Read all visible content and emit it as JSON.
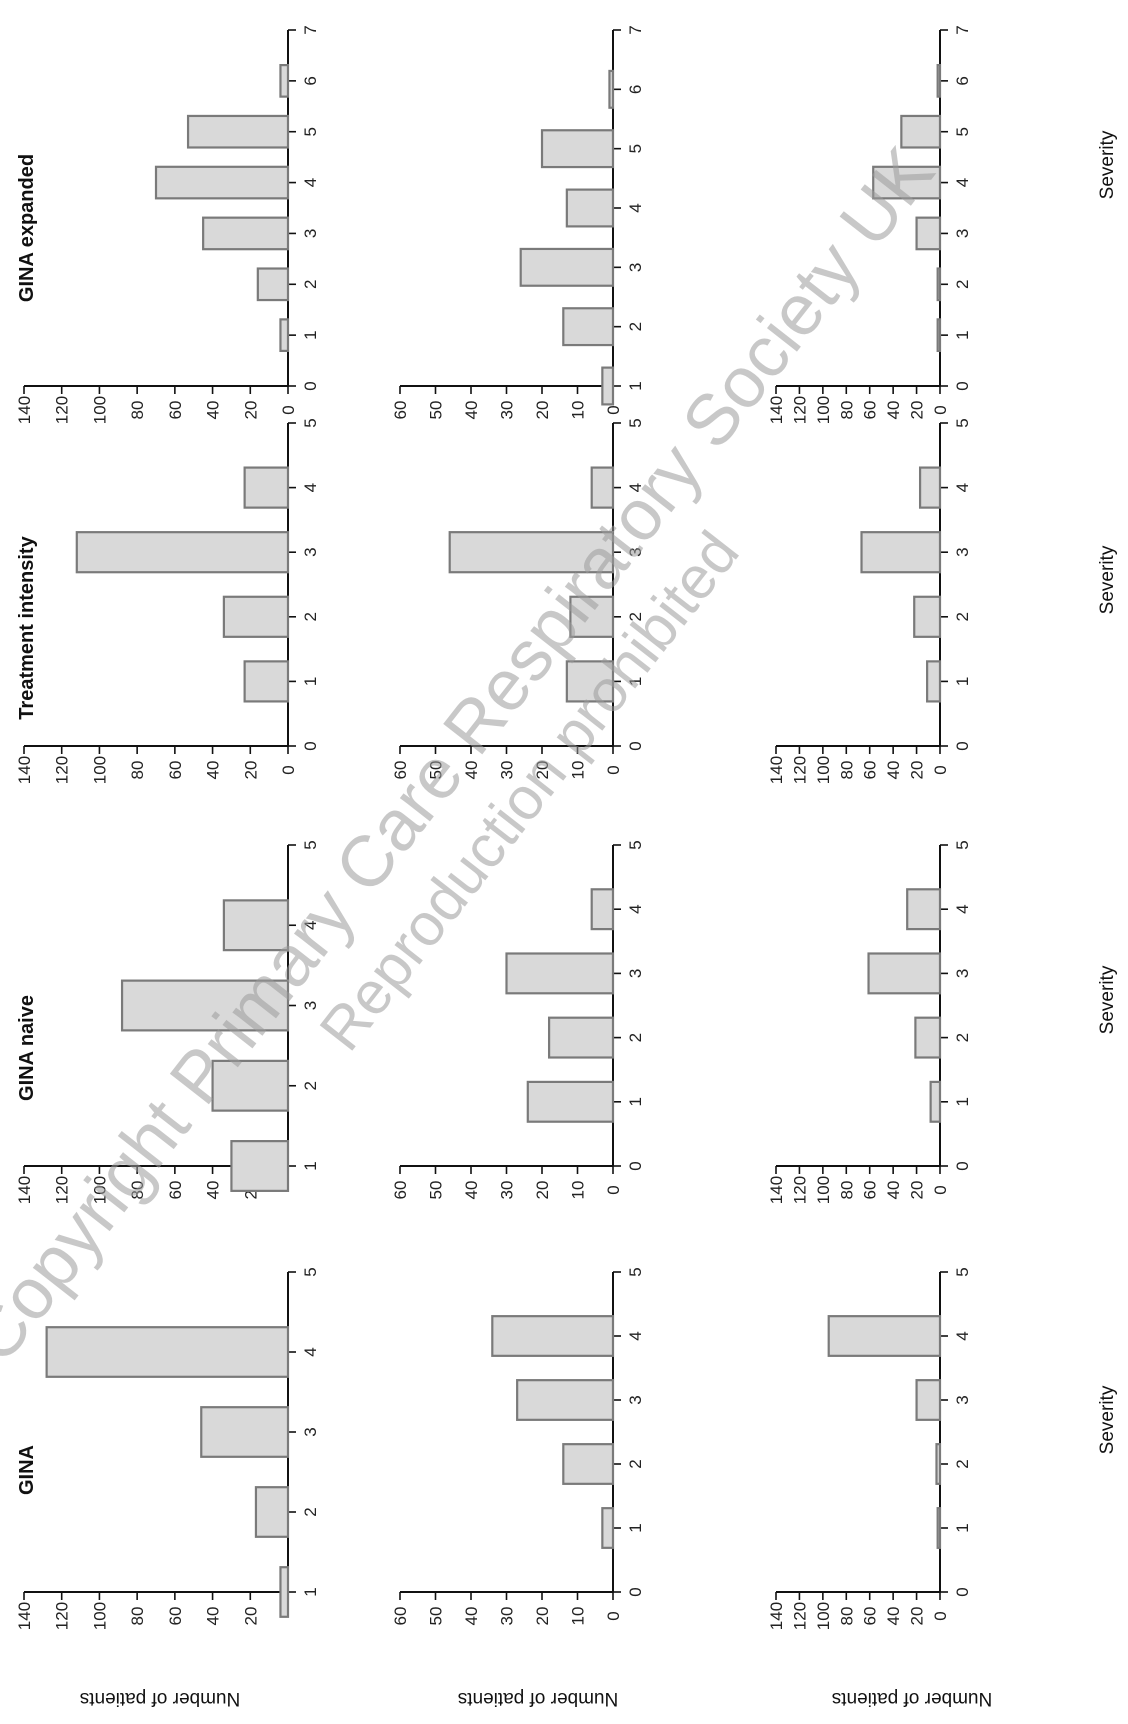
{
  "figure": {
    "watermark_line1": "Copyright Primary Care Respiratory Society UK",
    "watermark_line2": "Reproduction prohibited",
    "column_titles": [
      "GINA",
      "GINA naive",
      "Treatment intensity",
      "GINA expanded"
    ],
    "row_ylabel": "Number of patients",
    "row_xlabel": "Severity"
  },
  "chart_data": [
    {
      "type": "bar",
      "column": "GINA",
      "xlim": [
        1,
        5
      ],
      "xticks": [
        1,
        2,
        3,
        4,
        5
      ],
      "ylim": [
        0,
        140
      ],
      "yticks": [
        20,
        40,
        60,
        80,
        100,
        120,
        140
      ],
      "categories": [
        1,
        2,
        3,
        4
      ],
      "values": [
        4,
        17,
        46,
        128
      ],
      "ylabel": "Number of patients"
    },
    {
      "type": "bar",
      "column": "GINA naive",
      "xlim": [
        1,
        5
      ],
      "xticks": [
        1,
        2,
        3,
        4,
        5
      ],
      "ylim": [
        0,
        140
      ],
      "yticks": [
        20,
        40,
        60,
        80,
        100,
        120,
        140
      ],
      "categories": [
        1,
        2,
        3,
        4
      ],
      "values": [
        30,
        40,
        88,
        34
      ]
    },
    {
      "type": "bar",
      "column": "Treatment intensity",
      "xlim": [
        0,
        5
      ],
      "xticks": [
        0,
        1,
        2,
        3,
        4,
        5
      ],
      "ylim": [
        0,
        140
      ],
      "yticks": [
        0,
        20,
        40,
        60,
        80,
        100,
        120,
        140
      ],
      "categories": [
        1,
        2,
        3,
        4
      ],
      "values": [
        23,
        34,
        112,
        23
      ]
    },
    {
      "type": "bar",
      "column": "GINA expanded",
      "xlim": [
        0,
        7
      ],
      "xticks": [
        0,
        1,
        2,
        3,
        4,
        5,
        6,
        7
      ],
      "ylim": [
        0,
        140
      ],
      "yticks": [
        0,
        20,
        40,
        60,
        80,
        100,
        120,
        140
      ],
      "categories": [
        1,
        2,
        3,
        4,
        5,
        6
      ],
      "values": [
        4,
        16,
        45,
        70,
        53,
        4
      ]
    },
    {
      "type": "bar",
      "column": "GINA",
      "xlim": [
        0,
        5
      ],
      "xticks": [
        0,
        1,
        2,
        3,
        4,
        5
      ],
      "ylim": [
        0,
        60
      ],
      "yticks": [
        0,
        10,
        20,
        30,
        40,
        50,
        60
      ],
      "categories": [
        1,
        2,
        3,
        4
      ],
      "values": [
        3,
        14,
        27,
        34
      ],
      "ylabel": "Number of patients"
    },
    {
      "type": "bar",
      "column": "GINA naive",
      "xlim": [
        0,
        5
      ],
      "xticks": [
        0,
        1,
        2,
        3,
        4,
        5
      ],
      "ylim": [
        0,
        60
      ],
      "yticks": [
        0,
        10,
        20,
        30,
        40,
        50,
        60
      ],
      "categories": [
        1,
        2,
        3,
        4
      ],
      "values": [
        24,
        18,
        30,
        6
      ]
    },
    {
      "type": "bar",
      "column": "Treatment intensity",
      "xlim": [
        0,
        5
      ],
      "xticks": [
        0,
        1,
        2,
        3,
        4,
        5
      ],
      "ylim": [
        0,
        60
      ],
      "yticks": [
        0,
        10,
        20,
        30,
        40,
        50,
        60
      ],
      "categories": [
        1,
        2,
        3,
        4
      ],
      "values": [
        13,
        12,
        46,
        6
      ]
    },
    {
      "type": "bar",
      "column": "GINA expanded",
      "xlim": [
        1,
        7
      ],
      "xticks": [
        1,
        2,
        3,
        4,
        5,
        6,
        7
      ],
      "ylim": [
        0,
        60
      ],
      "yticks": [
        0,
        10,
        20,
        30,
        40,
        50,
        60
      ],
      "categories": [
        1,
        2,
        3,
        4,
        5,
        6
      ],
      "values": [
        3,
        14,
        26,
        13,
        20,
        1
      ]
    },
    {
      "type": "bar",
      "column": "GINA",
      "xlim": [
        0,
        5
      ],
      "xticks": [
        0,
        1,
        2,
        3,
        4,
        5
      ],
      "ylim": [
        0,
        140
      ],
      "yticks": [
        0,
        20,
        40,
        60,
        80,
        100,
        120,
        140
      ],
      "categories": [
        1,
        2,
        3,
        4
      ],
      "values": [
        2,
        3,
        20,
        95
      ],
      "ylabel": "Number of patients",
      "xlabel": "Severity"
    },
    {
      "type": "bar",
      "column": "GINA naive",
      "xlim": [
        0,
        5
      ],
      "xticks": [
        0,
        1,
        2,
        3,
        4,
        5
      ],
      "ylim": [
        0,
        140
      ],
      "yticks": [
        0,
        20,
        40,
        60,
        80,
        100,
        120,
        140
      ],
      "categories": [
        1,
        2,
        3,
        4
      ],
      "values": [
        8,
        21,
        61,
        28
      ],
      "xlabel": "Severity"
    },
    {
      "type": "bar",
      "column": "Treatment intensity",
      "xlim": [
        0,
        5
      ],
      "xticks": [
        0,
        1,
        2,
        3,
        4,
        5
      ],
      "ylim": [
        0,
        140
      ],
      "yticks": [
        0,
        20,
        40,
        60,
        80,
        100,
        120,
        140
      ],
      "categories": [
        1,
        2,
        3,
        4
      ],
      "values": [
        11,
        22,
        67,
        17
      ],
      "xlabel": "Severity"
    },
    {
      "type": "bar",
      "column": "GINA expanded",
      "xlim": [
        0,
        7
      ],
      "xticks": [
        0,
        1,
        2,
        3,
        4,
        5,
        6,
        7
      ],
      "ylim": [
        0,
        140
      ],
      "yticks": [
        0,
        20,
        40,
        60,
        80,
        100,
        120,
        140
      ],
      "categories": [
        1,
        2,
        3,
        4,
        5,
        6
      ],
      "values": [
        2,
        2,
        20,
        57,
        33,
        2
      ],
      "xlabel": "Severity"
    }
  ]
}
